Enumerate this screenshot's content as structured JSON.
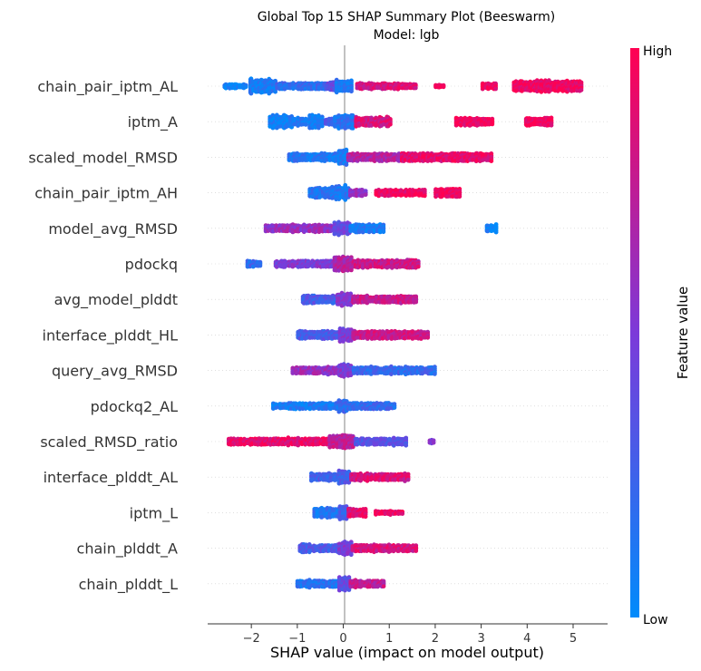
{
  "chart_data": {
    "type": "scatter",
    "subtype": "beeswarm",
    "title": "Global Top 15 SHAP Summary Plot (Beeswarm)",
    "subtitle": "Model: lgb",
    "xlabel": "SHAP value (impact on model output)",
    "xlim": [
      -2.95,
      5.75
    ],
    "xticks": [
      -2,
      -1,
      0,
      1,
      2,
      3,
      4,
      5
    ],
    "xtick_labels": [
      "−2",
      "−1",
      "0",
      "1",
      "2",
      "3",
      "4",
      "5"
    ],
    "colorbar": {
      "label": "Feature value",
      "high_label": "High",
      "low_label": "Low",
      "low_color": "#008bfb",
      "high_color": "#ff0052"
    },
    "features": [
      {
        "name": "chain_pair_iptm_AL",
        "min": -2.6,
        "max": 5.2,
        "segments": [
          {
            "from": -2.6,
            "to": -2.1,
            "density": 0.25,
            "value": 0.05
          },
          {
            "from": -2.05,
            "to": -1.45,
            "density": 1.0,
            "value": 0.08
          },
          {
            "from": -1.45,
            "to": -0.35,
            "density": 0.45,
            "value": 0.2
          },
          {
            "from": -0.35,
            "to": -0.1,
            "density": 0.6,
            "value": 0.4
          },
          {
            "from": -0.15,
            "to": 0.2,
            "density": 1.0,
            "value": 0.1
          },
          {
            "from": 0.3,
            "to": 1.6,
            "density": 0.35,
            "value": 0.85
          },
          {
            "from": 2.0,
            "to": 2.2,
            "density": 0.15,
            "value": 0.95
          },
          {
            "from": 3.0,
            "to": 3.35,
            "density": 0.4,
            "value": 0.95
          },
          {
            "from": 3.7,
            "to": 5.2,
            "density": 0.75,
            "value": 0.95
          }
        ]
      },
      {
        "name": "iptm_A",
        "min": -1.6,
        "max": 4.55,
        "segments": [
          {
            "from": -1.6,
            "to": -1.1,
            "density": 0.9,
            "value": 0.05
          },
          {
            "from": -1.15,
            "to": -0.8,
            "density": 0.5,
            "value": 0.1
          },
          {
            "from": -0.75,
            "to": -0.45,
            "density": 0.95,
            "value": 0.08
          },
          {
            "from": -0.4,
            "to": -0.2,
            "density": 0.4,
            "value": 0.3
          },
          {
            "from": -0.2,
            "to": 0.25,
            "density": 0.9,
            "value": 0.15
          },
          {
            "from": 0.25,
            "to": 1.05,
            "density": 0.6,
            "value": 0.85
          },
          {
            "from": 2.45,
            "to": 3.25,
            "density": 0.5,
            "value": 0.95
          },
          {
            "from": 3.95,
            "to": 4.55,
            "density": 0.5,
            "value": 0.95
          }
        ]
      },
      {
        "name": "scaled_model_RMSD",
        "min": -1.2,
        "max": 3.25,
        "segments": [
          {
            "from": -1.2,
            "to": -0.1,
            "density": 0.5,
            "value": 0.12
          },
          {
            "from": -0.1,
            "to": 0.1,
            "density": 1.0,
            "value": 0.1
          },
          {
            "from": 0.1,
            "to": 1.25,
            "density": 0.5,
            "value": 0.7
          },
          {
            "from": 1.25,
            "to": 3.25,
            "density": 0.55,
            "value": 0.9
          }
        ]
      },
      {
        "name": "chain_pair_iptm_AH",
        "min": -0.75,
        "max": 2.55,
        "segments": [
          {
            "from": -0.75,
            "to": -0.25,
            "density": 0.65,
            "value": 0.15
          },
          {
            "from": -0.25,
            "to": 0.15,
            "density": 0.95,
            "value": 0.12
          },
          {
            "from": 0.15,
            "to": 0.5,
            "density": 0.4,
            "value": 0.6
          },
          {
            "from": 0.7,
            "to": 1.8,
            "density": 0.4,
            "value": 0.95
          },
          {
            "from": 2.0,
            "to": 2.55,
            "density": 0.55,
            "value": 0.95
          }
        ]
      },
      {
        "name": "model_avg_RMSD",
        "min": -1.7,
        "max": 3.35,
        "segments": [
          {
            "from": -1.7,
            "to": -0.2,
            "density": 0.45,
            "value": 0.6
          },
          {
            "from": -0.2,
            "to": 0.15,
            "density": 0.9,
            "value": 0.4
          },
          {
            "from": 0.15,
            "to": 0.9,
            "density": 0.55,
            "value": 0.1
          },
          {
            "from": 3.1,
            "to": 3.35,
            "density": 0.45,
            "value": 0.05
          }
        ]
      },
      {
        "name": "pdockq",
        "min": -2.1,
        "max": 1.65,
        "segments": [
          {
            "from": -2.1,
            "to": -1.8,
            "density": 0.35,
            "value": 0.2
          },
          {
            "from": -1.5,
            "to": -0.2,
            "density": 0.4,
            "value": 0.5
          },
          {
            "from": -0.2,
            "to": 0.2,
            "density": 1.0,
            "value": 0.7
          },
          {
            "from": 0.2,
            "to": 1.65,
            "density": 0.5,
            "value": 0.8
          }
        ]
      },
      {
        "name": "avg_model_plddt",
        "min": -0.9,
        "max": 1.6,
        "segments": [
          {
            "from": -0.9,
            "to": -0.15,
            "density": 0.5,
            "value": 0.3
          },
          {
            "from": -0.15,
            "to": 0.2,
            "density": 0.9,
            "value": 0.5
          },
          {
            "from": 0.2,
            "to": 1.6,
            "density": 0.45,
            "value": 0.8
          }
        ]
      },
      {
        "name": "interface_plddt_HL",
        "min": -1.0,
        "max": 1.85,
        "segments": [
          {
            "from": -1.0,
            "to": -0.1,
            "density": 0.5,
            "value": 0.3
          },
          {
            "from": -0.1,
            "to": 0.2,
            "density": 0.95,
            "value": 0.5
          },
          {
            "from": 0.2,
            "to": 1.85,
            "density": 0.5,
            "value": 0.8
          }
        ]
      },
      {
        "name": "query_avg_RMSD",
        "min": -1.1,
        "max": 2.0,
        "segments": [
          {
            "from": -1.1,
            "to": -0.1,
            "density": 0.45,
            "value": 0.6
          },
          {
            "from": -0.1,
            "to": 0.2,
            "density": 0.9,
            "value": 0.5
          },
          {
            "from": 0.2,
            "to": 2.0,
            "density": 0.45,
            "value": 0.2
          }
        ]
      },
      {
        "name": "pdockq2_AL",
        "min": -1.55,
        "max": 1.15,
        "segments": [
          {
            "from": -1.55,
            "to": -0.1,
            "density": 0.4,
            "value": 0.1
          },
          {
            "from": -0.1,
            "to": 0.1,
            "density": 0.95,
            "value": 0.2
          },
          {
            "from": 0.1,
            "to": 1.15,
            "density": 0.4,
            "value": 0.2
          }
        ]
      },
      {
        "name": "scaled_RMSD_ratio",
        "min": -2.5,
        "max": 2.0,
        "segments": [
          {
            "from": -2.5,
            "to": -0.3,
            "density": 0.45,
            "value": 0.9
          },
          {
            "from": -0.3,
            "to": 0.25,
            "density": 0.95,
            "value": 0.75
          },
          {
            "from": 0.25,
            "to": 1.4,
            "density": 0.45,
            "value": 0.35
          },
          {
            "from": 1.85,
            "to": 2.0,
            "density": 0.25,
            "value": 0.5
          }
        ]
      },
      {
        "name": "interface_plddt_AL",
        "min": -0.7,
        "max": 1.45,
        "segments": [
          {
            "from": -0.7,
            "to": -0.1,
            "density": 0.45,
            "value": 0.25
          },
          {
            "from": -0.1,
            "to": 0.15,
            "density": 0.95,
            "value": 0.3
          },
          {
            "from": 0.15,
            "to": 1.45,
            "density": 0.45,
            "value": 0.85
          }
        ]
      },
      {
        "name": "iptm_L",
        "min": -0.65,
        "max": 1.3,
        "segments": [
          {
            "from": -0.65,
            "to": -0.1,
            "density": 0.6,
            "value": 0.15
          },
          {
            "from": -0.1,
            "to": 0.1,
            "density": 0.9,
            "value": 0.25
          },
          {
            "from": 0.1,
            "to": 0.5,
            "density": 0.55,
            "value": 0.9
          },
          {
            "from": 0.7,
            "to": 1.3,
            "density": 0.2,
            "value": 0.95
          }
        ]
      },
      {
        "name": "chain_plddt_A",
        "min": -0.95,
        "max": 1.6,
        "segments": [
          {
            "from": -0.95,
            "to": -0.1,
            "density": 0.45,
            "value": 0.3
          },
          {
            "from": -0.1,
            "to": 0.2,
            "density": 0.95,
            "value": 0.5
          },
          {
            "from": 0.2,
            "to": 1.6,
            "density": 0.45,
            "value": 0.85
          }
        ]
      },
      {
        "name": "chain_plddt_L",
        "min": -1.0,
        "max": 0.9,
        "segments": [
          {
            "from": -1.0,
            "to": -0.1,
            "density": 0.45,
            "value": 0.15
          },
          {
            "from": -0.1,
            "to": 0.15,
            "density": 0.95,
            "value": 0.4
          },
          {
            "from": 0.15,
            "to": 0.9,
            "density": 0.45,
            "value": 0.75
          }
        ]
      }
    ]
  }
}
